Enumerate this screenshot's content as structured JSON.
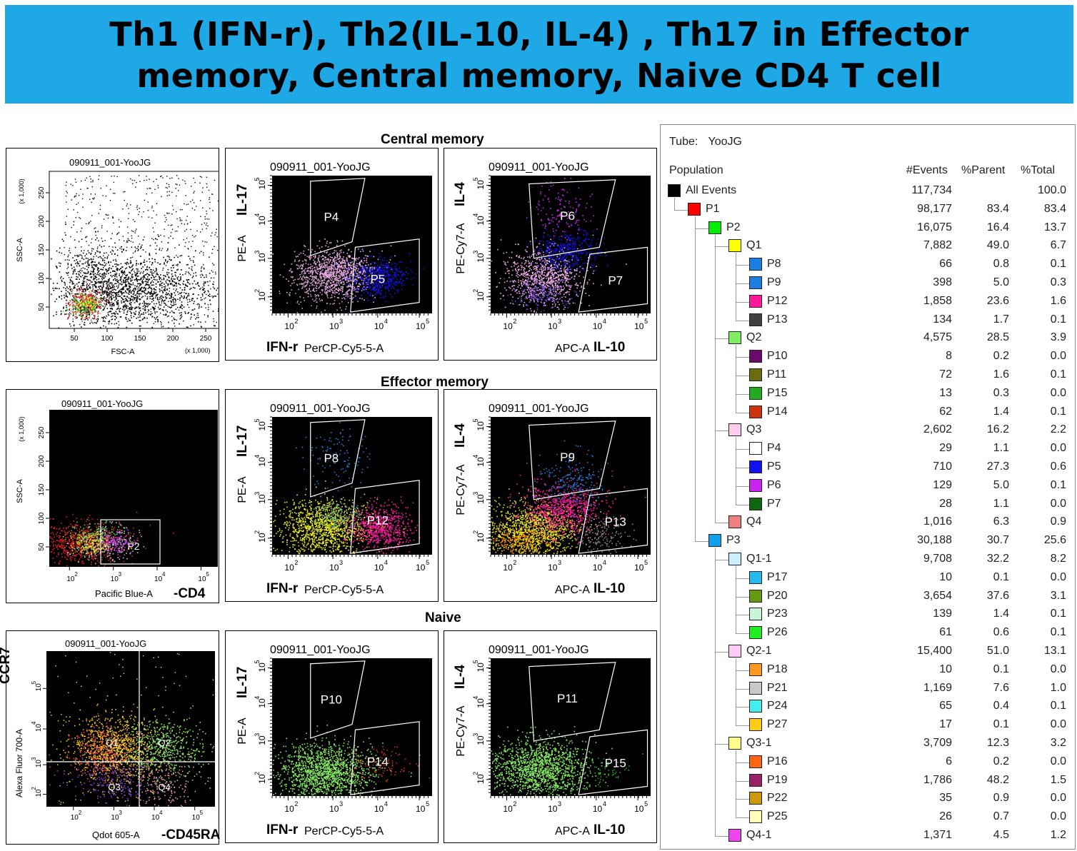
{
  "header": {
    "line1": "Th1 (IFN-r),  Th2(IL-10, IL-4) , Th17 in Effector",
    "line2": "memory,  Central memory, Naive CD4 T cell"
  },
  "sections": {
    "central": "Central memory",
    "effector": "Effector memory",
    "naive": "Naive"
  },
  "plots": {
    "sample": "090911_001-YooJG",
    "fsc_ssc": {
      "xlabel": "FSC-A",
      "ylabel": "SSC-A",
      "y_unit": "(x 1,000)",
      "x_unit": "(x 1,000)",
      "xticks": [
        "50",
        "100",
        "150",
        "200",
        "250"
      ],
      "yticks": [
        "50",
        "100",
        "150",
        "200",
        "250"
      ],
      "gate": "P1"
    },
    "cd4": {
      "xlabel": "Pacific Blue-A",
      "xlabel_marker": "-CD4",
      "ylabel": "SSC-A",
      "y_unit": "(x 1,000)",
      "yticks": [
        "50",
        "100",
        "150",
        "200",
        "250"
      ],
      "gate": "P2"
    },
    "ccr7": {
      "xlabel": "Qdot 605-A",
      "xlabel_marker": "-CD45RA",
      "ylabel": "Alexa Fluor 700-A",
      "ylabel_marker": "CCR7",
      "quadrants": [
        "Q1",
        "Q2",
        "Q3",
        "Q4"
      ]
    },
    "il17": {
      "xlabel": "PerCP-Cy5-5-A",
      "xlabel_marker": "IFN-r",
      "ylabel": "PE-A",
      "ylabel_marker": "IL-17"
    },
    "il4": {
      "xlabel": "APC-A",
      "xlabel_marker": "IL-10",
      "ylabel": "PE-Cy7-A",
      "ylabel_marker": "IL-4"
    },
    "log_ticks_x": [
      "10",
      "10",
      "10",
      "10"
    ],
    "log_ticks_exp": [
      "2",
      "3",
      "4",
      "5"
    ],
    "gates": {
      "central_il17": [
        "P4",
        "P5"
      ],
      "central_il4": [
        "P6",
        "P7"
      ],
      "effector_il17": [
        "P8",
        "P12"
      ],
      "effector_il4": [
        "P9",
        "P13"
      ],
      "naive_il17": [
        "P10",
        "P14"
      ],
      "naive_il4": [
        "P11",
        "P15"
      ]
    }
  },
  "hierarchy": {
    "tube_label": "Tube:",
    "tube_value": "YooJG",
    "columns": [
      "Population",
      "#Events",
      "%Parent",
      "%Total"
    ]
  },
  "chart_data": [
    {
      "type": "table",
      "title": "",
      "columns": [
        "Population",
        "#Events",
        "%Parent",
        "%Total"
      ],
      "rows": [
        {
          "name": "All Events",
          "level": 0,
          "color": "#000000",
          "events": "117,734",
          "parent": "",
          "total": "100.0"
        },
        {
          "name": "P1",
          "level": 1,
          "color": "#ff0000",
          "events": "98,177",
          "parent": "83.4",
          "total": "83.4"
        },
        {
          "name": "P2",
          "level": 2,
          "color": "#00ee00",
          "events": "16,075",
          "parent": "16.4",
          "total": "13.7"
        },
        {
          "name": "Q1",
          "level": 3,
          "color": "#ffff00",
          "events": "7,882",
          "parent": "49.0",
          "total": "6.7"
        },
        {
          "name": "P8",
          "level": 4,
          "color": "#1e7ee0",
          "events": "66",
          "parent": "0.8",
          "total": "0.1"
        },
        {
          "name": "P9",
          "level": 4,
          "color": "#1e7ee0",
          "events": "398",
          "parent": "5.0",
          "total": "0.3"
        },
        {
          "name": "P12",
          "level": 4,
          "color": "#ff1a9c",
          "events": "1,858",
          "parent": "23.6",
          "total": "1.6"
        },
        {
          "name": "P13",
          "level": 4,
          "color": "#404040",
          "events": "134",
          "parent": "1.7",
          "total": "0.1"
        },
        {
          "name": "Q2",
          "level": 3,
          "color": "#80ee60",
          "events": "4,575",
          "parent": "28.5",
          "total": "3.9"
        },
        {
          "name": "P10",
          "level": 4,
          "color": "#6a0a6a",
          "events": "8",
          "parent": "0.2",
          "total": "0.0"
        },
        {
          "name": "P11",
          "level": 4,
          "color": "#6b6b10",
          "events": "72",
          "parent": "1.6",
          "total": "0.1"
        },
        {
          "name": "P15",
          "level": 4,
          "color": "#22aa22",
          "events": "13",
          "parent": "0.3",
          "total": "0.0"
        },
        {
          "name": "P14",
          "level": 4,
          "color": "#cc3311",
          "events": "62",
          "parent": "1.4",
          "total": "0.1"
        },
        {
          "name": "Q3",
          "level": 3,
          "color": "#ffccee",
          "events": "2,602",
          "parent": "16.2",
          "total": "2.2"
        },
        {
          "name": "P4",
          "level": 4,
          "color": "#ffffff",
          "events": "29",
          "parent": "1.1",
          "total": "0.0"
        },
        {
          "name": "P5",
          "level": 4,
          "color": "#1111ee",
          "events": "710",
          "parent": "27.3",
          "total": "0.6"
        },
        {
          "name": "P6",
          "level": 4,
          "color": "#cc22ee",
          "events": "129",
          "parent": "5.0",
          "total": "0.1"
        },
        {
          "name": "P7",
          "level": 4,
          "color": "#116611",
          "events": "28",
          "parent": "1.1",
          "total": "0.0"
        },
        {
          "name": "Q4",
          "level": 3,
          "color": "#f08080",
          "events": "1,016",
          "parent": "6.3",
          "total": "0.9"
        },
        {
          "name": "P3",
          "level": 2,
          "color": "#11a0ee",
          "events": "30,188",
          "parent": "30.7",
          "total": "25.6"
        },
        {
          "name": "Q1-1",
          "level": 3,
          "color": "#ccf0ff",
          "events": "9,708",
          "parent": "32.2",
          "total": "8.2"
        },
        {
          "name": "P17",
          "level": 4,
          "color": "#22bbee",
          "events": "10",
          "parent": "0.1",
          "total": "0.0"
        },
        {
          "name": "P20",
          "level": 4,
          "color": "#669911",
          "events": "3,654",
          "parent": "37.6",
          "total": "3.1"
        },
        {
          "name": "P23",
          "level": 4,
          "color": "#ccf5d8",
          "events": "139",
          "parent": "1.4",
          "total": "0.1"
        },
        {
          "name": "P26",
          "level": 4,
          "color": "#22ee22",
          "events": "61",
          "parent": "0.6",
          "total": "0.1"
        },
        {
          "name": "Q2-1",
          "level": 3,
          "color": "#ffccf5",
          "events": "15,400",
          "parent": "51.0",
          "total": "13.1"
        },
        {
          "name": "P18",
          "level": 4,
          "color": "#ff9922",
          "events": "10",
          "parent": "0.1",
          "total": "0.0"
        },
        {
          "name": "P21",
          "level": 4,
          "color": "#c8c8c8",
          "events": "1,169",
          "parent": "7.6",
          "total": "1.0"
        },
        {
          "name": "P24",
          "level": 4,
          "color": "#44eeee",
          "events": "65",
          "parent": "0.4",
          "total": "0.1"
        },
        {
          "name": "P27",
          "level": 4,
          "color": "#ffcc11",
          "events": "17",
          "parent": "0.1",
          "total": "0.0"
        },
        {
          "name": "Q3-1",
          "level": 3,
          "color": "#ffff88",
          "events": "3,709",
          "parent": "12.3",
          "total": "3.2"
        },
        {
          "name": "P16",
          "level": 4,
          "color": "#ff6611",
          "events": "6",
          "parent": "0.2",
          "total": "0.0"
        },
        {
          "name": "P19",
          "level": 4,
          "color": "#992266",
          "events": "1,786",
          "parent": "48.2",
          "total": "1.5"
        },
        {
          "name": "P22",
          "level": 4,
          "color": "#cc9911",
          "events": "35",
          "parent": "0.9",
          "total": "0.0"
        },
        {
          "name": "P25",
          "level": 4,
          "color": "#ffffbb",
          "events": "26",
          "parent": "0.7",
          "total": "0.0"
        },
        {
          "name": "Q4-1",
          "level": 3,
          "color": "#ee44ee",
          "events": "1,371",
          "parent": "4.5",
          "total": "1.2"
        }
      ]
    }
  ],
  "colors": {
    "banner": "#1ea8e6",
    "plot_bg": "#000000",
    "gate": "#ffffff",
    "central_pop": "#f0b0e8",
    "central_p5": "#1111ee",
    "central_p6": "#cc22ee",
    "effector_pop": "#eeee22",
    "effector_p12": "#ff1a9c",
    "effector_p8": "#1e7ee0",
    "naive_pop": "#88ee66",
    "naive_p14": "#cc3311"
  }
}
